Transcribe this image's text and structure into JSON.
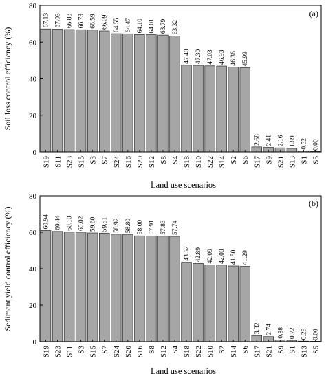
{
  "colors": {
    "bar_fill": "#a6a6a6",
    "bar_stroke": "#3a3a3a",
    "axis": "#000000"
  },
  "chart_data": [
    {
      "type": "bar",
      "panel_label": "(a)",
      "ylabel": "Soil loss control efficiency (%)",
      "xlabel": "Land use scenarios",
      "ylim": [
        0,
        80
      ],
      "yticks": [
        0,
        20,
        40,
        60,
        80
      ],
      "grid": false,
      "categories": [
        "S19",
        "S11",
        "S23",
        "S15",
        "S3",
        "S7",
        "S24",
        "S16",
        "S20",
        "S12",
        "S8",
        "S4",
        "S18",
        "S10",
        "S22",
        "S14",
        "S2",
        "S6",
        "S17",
        "S9",
        "S21",
        "S13",
        "S1",
        "S5"
      ],
      "values": [
        67.13,
        67.03,
        66.83,
        66.73,
        66.59,
        66.09,
        64.55,
        64.47,
        64.1,
        64.01,
        63.79,
        63.32,
        47.4,
        47.3,
        47.03,
        46.93,
        46.36,
        45.99,
        2.68,
        2.41,
        2.16,
        1.89,
        0.52,
        0.0
      ],
      "labels": [
        "67.13",
        "67.03",
        "66.83",
        "66.73",
        "66.59",
        "66.09",
        "64.55",
        "64.47",
        "64.10",
        "64.01",
        "63.79",
        "63.32",
        "47.40",
        "47.30",
        "47.03",
        "46.93",
        "46.36",
        "45.99",
        "2.68",
        "2.41",
        "2.16",
        "1.89",
        "0.52",
        "0.00"
      ]
    },
    {
      "type": "bar",
      "panel_label": "(b)",
      "ylabel": "Sediment yield control efficiency (%)",
      "xlabel": "Land use scenarios",
      "ylim": [
        0,
        80
      ],
      "yticks": [
        0,
        20,
        40,
        60,
        80
      ],
      "grid": false,
      "categories": [
        "S19",
        "S23",
        "S11",
        "S3",
        "S15",
        "S7",
        "S24",
        "S20",
        "S16",
        "S8",
        "S12",
        "S4",
        "S18",
        "S22",
        "S10",
        "S2",
        "S14",
        "S6",
        "S17",
        "S21",
        "S9",
        "S1",
        "S13",
        "S5"
      ],
      "values": [
        60.94,
        60.44,
        60.1,
        60.02,
        59.6,
        59.51,
        58.92,
        58.8,
        58.0,
        57.91,
        57.83,
        57.74,
        43.52,
        42.89,
        42.09,
        42.0,
        41.5,
        41.29,
        3.32,
        2.74,
        0.88,
        0.72,
        0.29,
        0.0
      ],
      "labels": [
        "60.94",
        "60.44",
        "60.10",
        "60.02",
        "59.60",
        "59.51",
        "58.92",
        "58.80",
        "58.00",
        "57.91",
        "57.83",
        "57.74",
        "43.52",
        "42.89",
        "42.09",
        "42.00",
        "41.50",
        "41.29",
        "3.32",
        "2.74",
        "0.88",
        "0.72",
        "0.29",
        "0.00"
      ]
    }
  ]
}
